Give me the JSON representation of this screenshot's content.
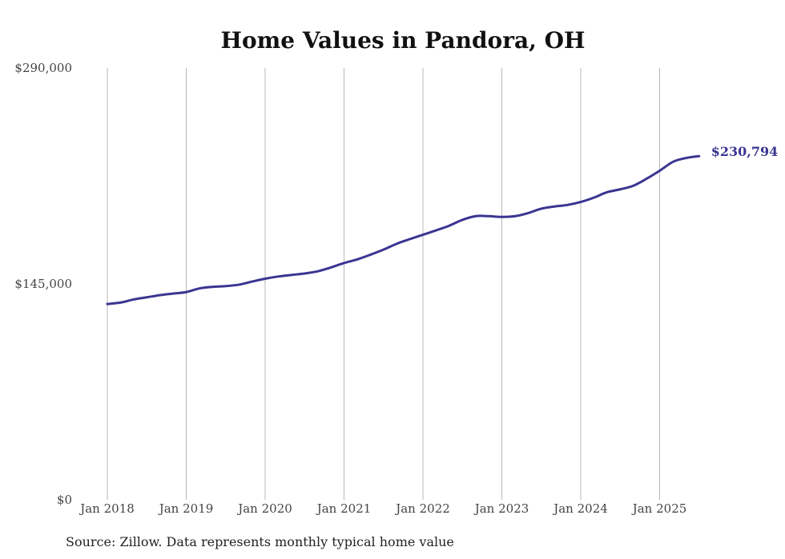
{
  "chart_data": {
    "type": "line",
    "title": "Home Values in Pandora, OH",
    "xlabel": "",
    "ylabel": "",
    "ylim": [
      0,
      290000
    ],
    "y_ticks": [
      "$0",
      "$145,000",
      "$290,000"
    ],
    "y_tick_values": [
      0,
      145000,
      290000
    ],
    "x_ticks": [
      "Jan 2018",
      "Jan 2019",
      "Jan 2020",
      "Jan 2021",
      "Jan 2022",
      "Jan 2023",
      "Jan 2024",
      "Jan 2025"
    ],
    "grid": "vertical",
    "legend": "none",
    "color": "#3a3591",
    "end_label": "$230,794",
    "series": [
      {
        "values": [
          [
            2018.0,
            131500
          ],
          [
            2018.17,
            132500
          ],
          [
            2018.33,
            134500
          ],
          [
            2018.5,
            136000
          ],
          [
            2018.67,
            137500
          ],
          [
            2018.83,
            138500
          ],
          [
            2019.0,
            139500
          ],
          [
            2019.17,
            142000
          ],
          [
            2019.33,
            143000
          ],
          [
            2019.5,
            143500
          ],
          [
            2019.67,
            144500
          ],
          [
            2019.83,
            146500
          ],
          [
            2020.0,
            148500
          ],
          [
            2020.17,
            150000
          ],
          [
            2020.33,
            151000
          ],
          [
            2020.5,
            152000
          ],
          [
            2020.67,
            153500
          ],
          [
            2020.83,
            156000
          ],
          [
            2021.0,
            159000
          ],
          [
            2021.17,
            161500
          ],
          [
            2021.33,
            164500
          ],
          [
            2021.5,
            168000
          ],
          [
            2021.67,
            172000
          ],
          [
            2021.83,
            175000
          ],
          [
            2022.0,
            178000
          ],
          [
            2022.17,
            181000
          ],
          [
            2022.33,
            184000
          ],
          [
            2022.5,
            188000
          ],
          [
            2022.67,
            190500
          ],
          [
            2022.83,
            190500
          ],
          [
            2023.0,
            190000
          ],
          [
            2023.17,
            190500
          ],
          [
            2023.33,
            192500
          ],
          [
            2023.5,
            195500
          ],
          [
            2023.67,
            197000
          ],
          [
            2023.83,
            198000
          ],
          [
            2024.0,
            200000
          ],
          [
            2024.17,
            203000
          ],
          [
            2024.33,
            206500
          ],
          [
            2024.5,
            208500
          ],
          [
            2024.67,
            211000
          ],
          [
            2024.83,
            215500
          ],
          [
            2025.0,
            221000
          ],
          [
            2025.17,
            227000
          ],
          [
            2025.33,
            229500
          ],
          [
            2025.5,
            230794
          ]
        ]
      }
    ]
  },
  "source_note": "Source: Zillow. Data represents monthly typical home value"
}
